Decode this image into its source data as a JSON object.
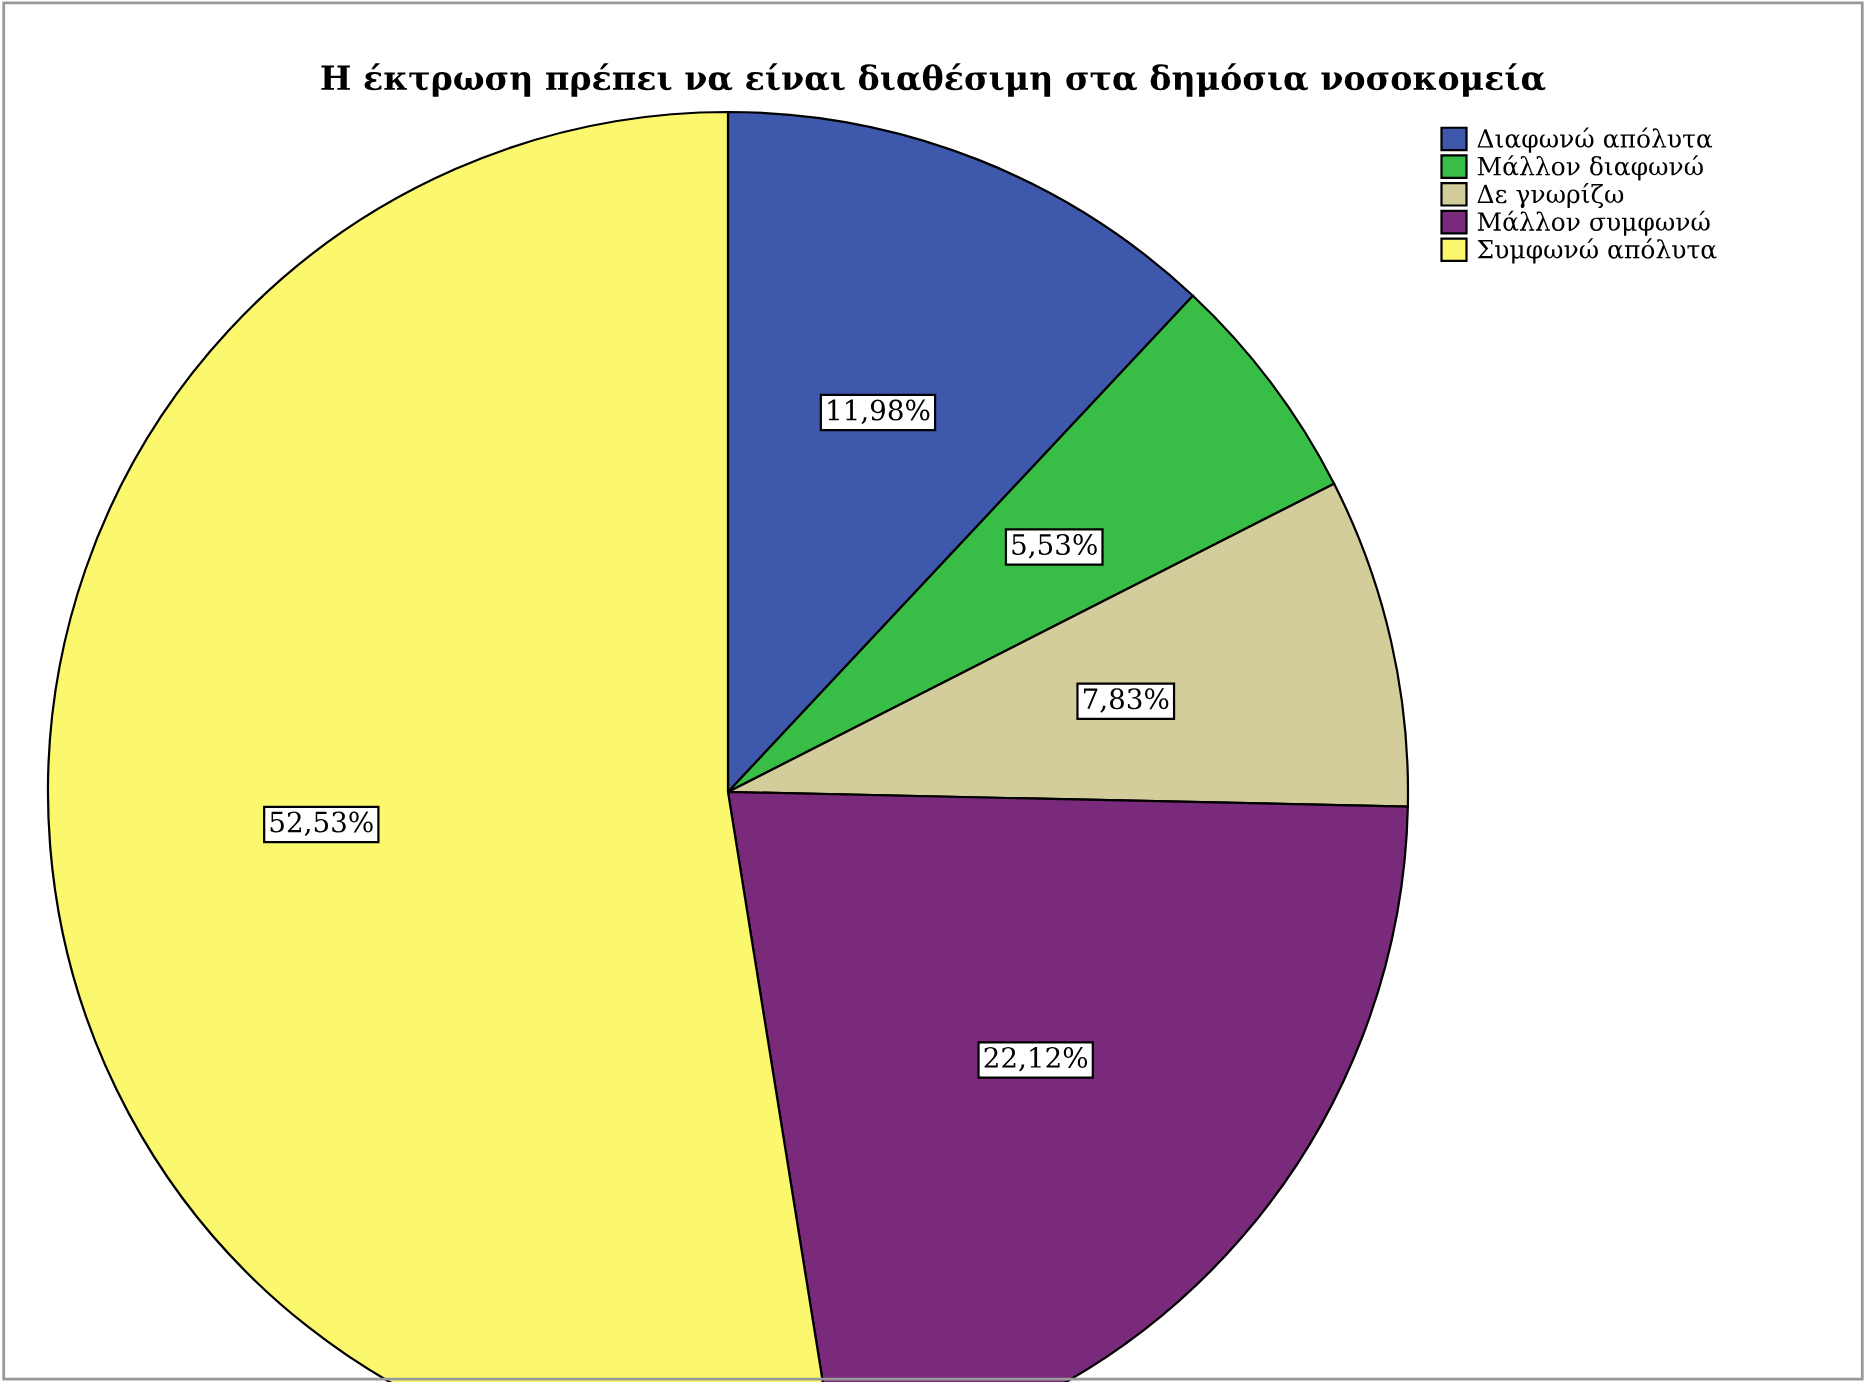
{
  "chart_data": {
    "type": "pie",
    "title": "Η έκτρωση πρέπει να είναι διαθέσιμη στα δημόσια νοσοκομεία",
    "categories": [
      "Διαφωνώ απόλυτα",
      "Μάλλον διαφωνώ",
      "Δε γνωρίζω",
      "Μάλλον συμφωνώ",
      "Συμφωνώ απόλυτα"
    ],
    "values": [
      11.98,
      5.53,
      7.83,
      22.12,
      52.53
    ],
    "value_labels": [
      "11,98%",
      "5,53%",
      "7,83%",
      "22,12%",
      "52,53%"
    ],
    "colors": [
      "#3e58ac",
      "#38bd47",
      "#d3cd9b",
      "#7a2a7b",
      "#fbf86e"
    ],
    "legend": "top right"
  }
}
